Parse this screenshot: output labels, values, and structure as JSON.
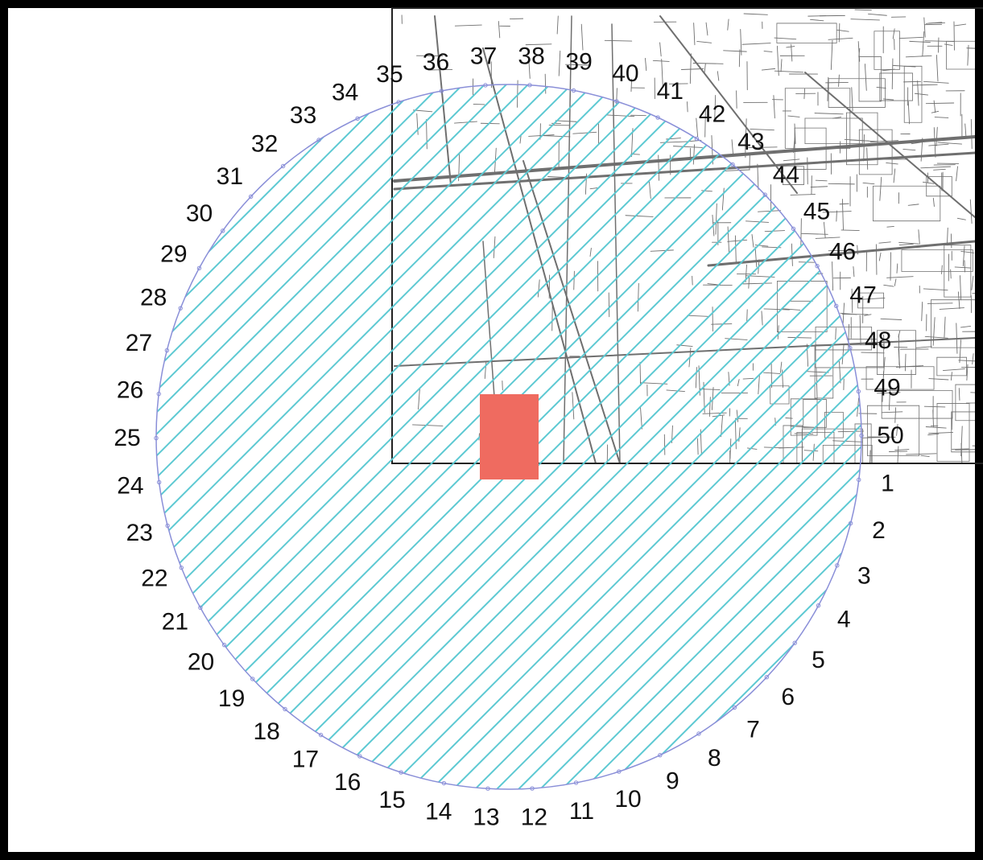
{
  "map": {
    "colors": {
      "border": "#000000",
      "background": "#ffffff",
      "hatch": "#5cc9d2",
      "circle_outline": "#8a8fd8",
      "cadastral_lines": "#6f6f6f",
      "target": "#ef6b60"
    },
    "layers": {
      "cadastral_map": "cadastral parcel map (upper right)",
      "influence_circle": "hatched circular area",
      "target_parcel": "red rectangle"
    },
    "point_labels": [
      "1",
      "2",
      "3",
      "4",
      "5",
      "6",
      "7",
      "8",
      "9",
      "10",
      "11",
      "12",
      "13",
      "14",
      "15",
      "16",
      "17",
      "18",
      "19",
      "20",
      "21",
      "22",
      "23",
      "24",
      "25",
      "26",
      "27",
      "28",
      "29",
      "30",
      "31",
      "32",
      "33",
      "34",
      "35",
      "36",
      "37",
      "38",
      "39",
      "40",
      "41",
      "42",
      "43",
      "44",
      "45",
      "46",
      "47",
      "48",
      "49",
      "50"
    ]
  }
}
